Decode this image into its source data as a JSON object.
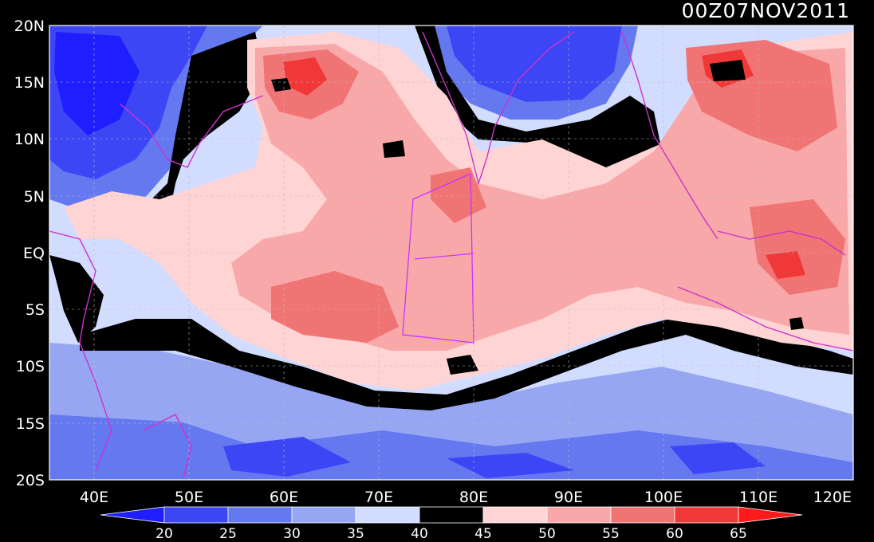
{
  "timestamp": "00Z07NOV2011",
  "lat_labels": [
    "20N",
    "15N",
    "10N",
    "5N",
    "EQ",
    "5S",
    "10S",
    "15S",
    "20S"
  ],
  "lon_labels": [
    "40E",
    "50E",
    "60E",
    "70E",
    "80E",
    "90E",
    "100E",
    "110E",
    "120E"
  ],
  "colorbar": {
    "labels": [
      "20",
      "25",
      "30",
      "35",
      "40",
      "45",
      "50",
      "55",
      "60",
      "65"
    ],
    "colors": [
      "#1e1eff",
      "#3c46f5",
      "#6478f0",
      "#96a6f2",
      "#d2dcff",
      "#000000",
      "#ffd4d4",
      "#f8a8a8",
      "#f07474",
      "#f03838",
      "#ff1a1a"
    ]
  },
  "palette": {
    "background": "#000000",
    "coastline": "#cc33cc",
    "box": "#cc33ff"
  }
}
